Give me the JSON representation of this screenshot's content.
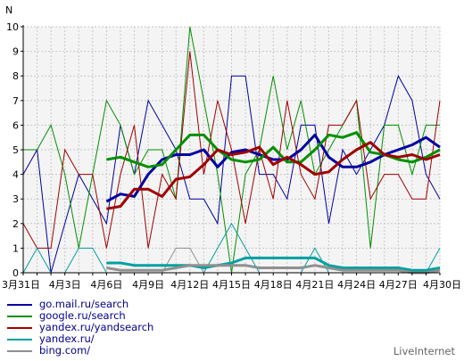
{
  "chart_data": {
    "type": "line",
    "ylabel": "N",
    "ylim": [
      0,
      10
    ],
    "yticks": [
      "0",
      "1",
      "2",
      "3",
      "4",
      "5",
      "6",
      "7",
      "8",
      "9",
      "10"
    ],
    "xtick_labels": [
      "3月31日",
      "4月3日",
      "4月6日",
      "4月9日",
      "4月12日",
      "4月15日",
      "4月18日",
      "4月21日",
      "4月24日",
      "4月27日",
      "4月30日"
    ],
    "x": [
      "3/31",
      "4/1",
      "4/2",
      "4/3",
      "4/4",
      "4/5",
      "4/6",
      "4/7",
      "4/8",
      "4/9",
      "4/10",
      "4/11",
      "4/12",
      "4/13",
      "4/14",
      "4/15",
      "4/16",
      "4/17",
      "4/18",
      "4/19",
      "4/20",
      "4/21",
      "4/22",
      "4/23",
      "4/24",
      "4/25",
      "4/26",
      "4/27",
      "4/28",
      "4/29",
      "4/30"
    ],
    "grid": true,
    "series": [
      {
        "name": "go.mail.ru/search",
        "color": "#0000a0",
        "values": [
          4,
          5,
          0,
          2,
          4,
          3,
          2,
          6,
          4,
          7,
          6,
          5,
          3,
          3,
          2,
          8,
          8,
          4,
          4,
          3,
          6,
          6,
          2,
          5,
          4,
          5,
          6,
          8,
          7,
          4,
          3
        ],
        "trend": [
          null,
          null,
          null,
          null,
          null,
          null,
          2.9,
          3.2,
          3.1,
          4.0,
          4.6,
          4.8,
          4.8,
          5.0,
          4.3,
          4.9,
          5.0,
          4.8,
          4.6,
          4.6,
          5.0,
          5.6,
          4.7,
          4.3,
          4.3,
          4.5,
          4.8,
          5.0,
          5.2,
          5.5,
          5.1
        ]
      },
      {
        "name": "google.ru/search",
        "color": "#009000",
        "values": [
          5,
          5,
          6,
          4,
          1,
          4,
          7,
          6,
          4,
          5,
          5,
          3,
          10,
          7,
          4,
          0,
          4,
          5,
          8,
          5,
          7,
          4,
          5,
          6,
          7,
          1,
          6,
          6,
          4,
          6,
          6
        ],
        "trend": [
          null,
          null,
          null,
          null,
          null,
          null,
          4.6,
          4.7,
          4.5,
          4.3,
          4.4,
          5.0,
          5.6,
          5.6,
          5.0,
          4.6,
          4.5,
          4.6,
          5.1,
          4.5,
          4.5,
          5.0,
          5.6,
          5.5,
          5.7,
          4.9,
          4.8,
          4.6,
          4.5,
          4.7,
          5.0
        ]
      },
      {
        "name": "yandex.ru/yandsearch",
        "color": "#a00000",
        "values": [
          2,
          1,
          1,
          5,
          4,
          4,
          1,
          4,
          6,
          1,
          4,
          3,
          9,
          4,
          7,
          5,
          2,
          5,
          3,
          7,
          4,
          3,
          6,
          6,
          7,
          3,
          4,
          4,
          3,
          3,
          7
        ],
        "trend": [
          null,
          null,
          null,
          null,
          null,
          null,
          2.6,
          2.7,
          3.4,
          3.4,
          3.1,
          3.8,
          3.9,
          4.4,
          5.0,
          4.8,
          4.9,
          5.1,
          4.4,
          4.7,
          4.4,
          4.0,
          4.1,
          4.6,
          5.0,
          5.3,
          4.8,
          4.7,
          4.8,
          4.6,
          4.8
        ]
      },
      {
        "name": "yandex.ru/",
        "color": "#00a0a0",
        "values": [
          0,
          1,
          0,
          0,
          1,
          1,
          0,
          0,
          0,
          0,
          0,
          0,
          0,
          0,
          1,
          2,
          1,
          0,
          0,
          0,
          0,
          1,
          0,
          0,
          0,
          0,
          0,
          0,
          0,
          0,
          1
        ],
        "trend": [
          null,
          null,
          null,
          null,
          null,
          null,
          0.4,
          0.4,
          0.3,
          0.3,
          0.3,
          0.3,
          0.3,
          0.2,
          0.3,
          0.4,
          0.6,
          0.6,
          0.6,
          0.6,
          0.6,
          0.6,
          0.3,
          0.2,
          0.2,
          0.2,
          0.2,
          0.2,
          0.1,
          0.1,
          0.2
        ]
      },
      {
        "name": "bing.com/",
        "color": "#909090",
        "values": [
          0,
          0,
          0,
          0,
          0,
          0,
          0,
          0,
          0,
          0,
          0,
          1,
          1,
          0,
          0,
          0,
          0,
          0,
          0,
          0,
          0,
          0,
          0,
          0,
          0,
          0,
          0,
          0,
          0,
          0,
          0
        ],
        "trend": [
          null,
          null,
          null,
          null,
          null,
          null,
          0.2,
          0.1,
          0.1,
          0.1,
          0.1,
          0.2,
          0.3,
          0.3,
          0.3,
          0.3,
          0.3,
          0.2,
          0.2,
          0.2,
          0.2,
          0.3,
          0.2,
          0.1,
          0.1,
          0.1,
          0.1,
          0.1,
          0.0,
          0.0,
          0.1
        ]
      }
    ]
  },
  "footer": {
    "brand": "LiveInternet"
  }
}
